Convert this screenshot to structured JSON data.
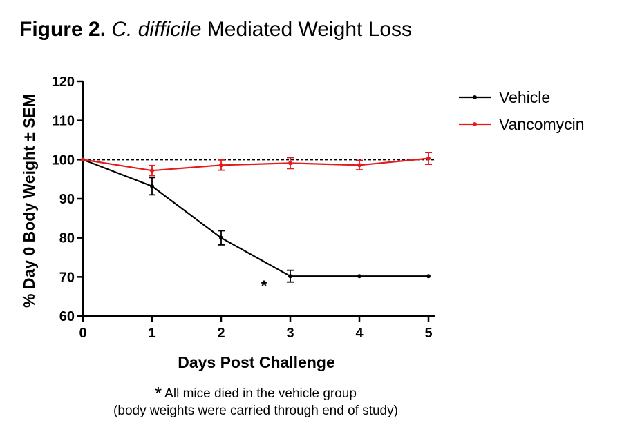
{
  "title": {
    "prefix": "Figure 2.",
    "organism": "C. difficile",
    "suffix": "Mediated Weight Loss"
  },
  "chart_data": {
    "type": "line",
    "xlabel": "Days Post Challenge",
    "ylabel": "% Day 0 Body Weight ± SEM",
    "x": [
      0,
      1,
      2,
      3,
      4,
      5
    ],
    "xlim": [
      0,
      5.1
    ],
    "ylim": [
      60,
      120
    ],
    "xticks": [
      0,
      1,
      2,
      3,
      4,
      5
    ],
    "yticks": [
      60,
      70,
      80,
      90,
      100,
      110,
      120
    ],
    "reference_line": {
      "y": 100,
      "style": "dashed",
      "color": "#000000"
    },
    "legend_position": "top-right",
    "series": [
      {
        "name": "Vehicle",
        "color": "#000000",
        "values": [
          100,
          93.2,
          80,
          70.2,
          70.2,
          70.2
        ],
        "sem": [
          0,
          2.2,
          1.8,
          1.5,
          0,
          0
        ]
      },
      {
        "name": "Vancomycin",
        "color": "#e41a1c",
        "values": [
          100,
          97.2,
          98.6,
          99.1,
          98.6,
          100.3
        ],
        "sem": [
          0,
          1.3,
          1.3,
          1.4,
          1.2,
          1.5
        ]
      }
    ],
    "annotations": [
      {
        "text": "*",
        "x": 2.62,
        "y": 68.5
      }
    ]
  },
  "footnote": {
    "marker": "*",
    "line1": "All mice died in the vehicle group",
    "line2": "(body weights were carried through end of study)"
  }
}
